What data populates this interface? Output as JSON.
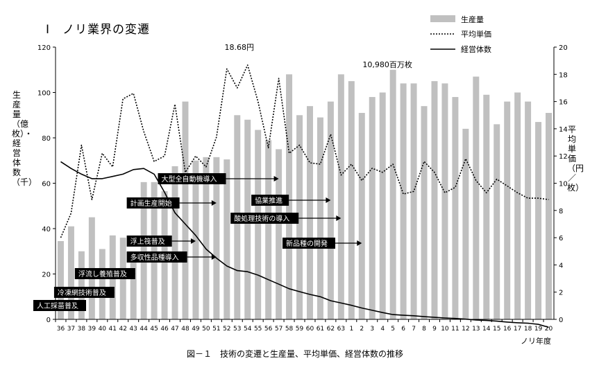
{
  "page": {
    "title": "Ⅰ　ノリ業界の変遷",
    "caption": "図－１　技術の変遷と生産量、平均単価、経営体数の推移"
  },
  "chart_data": {
    "type": "bar",
    "xlabel": "ノリ年度",
    "categories": [
      "36",
      "37",
      "38",
      "39",
      "40",
      "41",
      "42",
      "43",
      "44",
      "45",
      "46",
      "47",
      "48",
      "49",
      "50",
      "51",
      "52",
      "53",
      "54",
      "55",
      "56",
      "57",
      "58",
      "59",
      "60",
      "61",
      "62",
      "63",
      "1",
      "2",
      "3",
      "4",
      "5",
      "6",
      "7",
      "8",
      "9",
      "10",
      "11",
      "12",
      "13",
      "14",
      "15",
      "16",
      "17",
      "18",
      "19",
      "20"
    ],
    "ylabel_left": "生産量（億枚）・経営体数（千）",
    "ylabel_right": "平均単価（円／枚）",
    "ylim_left": [
      0,
      120
    ],
    "yticks_left": [
      0,
      20,
      40,
      60,
      80,
      100,
      120
    ],
    "ylim_right": [
      0,
      20
    ],
    "yticks_right": [
      0,
      2,
      4,
      6,
      8,
      10,
      12,
      14,
      16,
      18,
      20
    ],
    "grid": false,
    "legend_position": "top-right",
    "colors": {
      "bar": "#c0c0c0",
      "line": "#000000"
    },
    "series": [
      {
        "name": "生産量",
        "kind": "bar",
        "axis": "left",
        "values": [
          34.5,
          41,
          30,
          45,
          31,
          37,
          36,
          29,
          60.5,
          60.5,
          56.5,
          67.5,
          96,
          70,
          71.5,
          71.5,
          70.5,
          90,
          88,
          83.5,
          79,
          75,
          108,
          90,
          94,
          89,
          96,
          108,
          105,
          91,
          98,
          100,
          110,
          104,
          104,
          94,
          105,
          104,
          98,
          84,
          107,
          99,
          86,
          96,
          100,
          96,
          87,
          91
        ]
      },
      {
        "name": "平均単価",
        "kind": "line",
        "style": "dotted",
        "axis": "right",
        "values": [
          6.0,
          7.8,
          12.8,
          8.8,
          12.2,
          11.2,
          16.2,
          16.6,
          13.8,
          11.6,
          12.0,
          15.8,
          10.8,
          12.0,
          11.2,
          13.4,
          18.4,
          17.0,
          18.68,
          16.0,
          12.6,
          17.7,
          12.2,
          12.8,
          11.5,
          11.4,
          13.6,
          10.6,
          11.4,
          10.2,
          11.1,
          10.8,
          11.4,
          9.2,
          9.4,
          11.6,
          10.8,
          9.3,
          9.7,
          11.8,
          10.2,
          9.3,
          10.3,
          9.8,
          9.3,
          8.9,
          8.9,
          8.8
        ]
      },
      {
        "name": "経営体数",
        "kind": "line",
        "style": "solid",
        "axis": "left",
        "values": [
          69.5,
          66.5,
          64,
          62,
          62,
          63,
          64,
          66,
          66.5,
          64,
          56,
          47,
          42,
          37,
          31,
          27,
          23.5,
          21.5,
          21,
          19.5,
          17.5,
          15.5,
          13.5,
          12.2,
          11,
          10,
          8.2,
          7.2,
          6.2,
          5,
          4,
          3,
          2.1,
          1.8,
          1.6,
          1.2,
          0.9,
          0.6,
          0.4,
          0.1,
          -0.3,
          -0.5,
          -0.8,
          -1.2,
          -1.5,
          -1.7,
          -2.2,
          -3.5
        ]
      }
    ],
    "annotations": [
      {
        "text": "18.68円",
        "near": "平均単価 peak at 54"
      },
      {
        "text": "10,980百万枚",
        "near": "生産量 peak at 5"
      }
    ],
    "technology_labels": [
      {
        "label": "人工採苗普及",
        "from": "36",
        "to": "38"
      },
      {
        "label": "冷凍網技術普及",
        "from": "38",
        "to": "41"
      },
      {
        "label": "浮流し養殖普及",
        "from": "40",
        "to": "43"
      },
      {
        "label": "浮上筏普及",
        "from": "45",
        "to": "49"
      },
      {
        "label": "多収性品種導入",
        "from": "45",
        "to": "51"
      },
      {
        "label": "計画生産開始",
        "from": "45",
        "to": "51"
      },
      {
        "label": "大型全自動機導入",
        "from": "48",
        "to": "57"
      },
      {
        "label": "協業推進",
        "from": "57",
        "to": "62"
      },
      {
        "label": "酸処理技術の導入",
        "from": "55",
        "to": "63"
      },
      {
        "label": "新品種の開発",
        "from": "60",
        "to": "2"
      }
    ]
  }
}
